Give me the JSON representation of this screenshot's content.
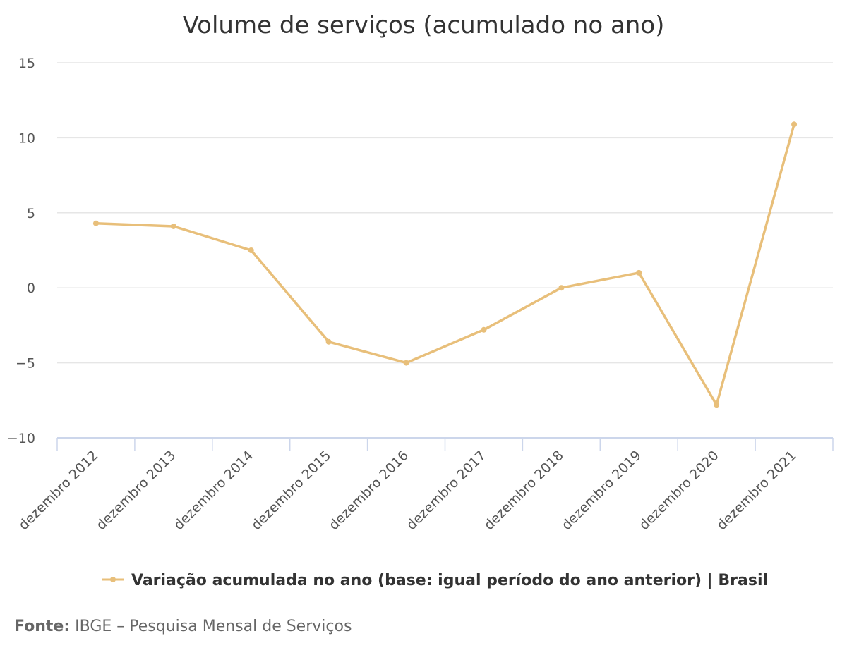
{
  "chart_data": {
    "type": "line",
    "title": "Volume de serviços (acumulado no ano)",
    "xlabel": "",
    "ylabel": "",
    "categories": [
      "dezembro 2012",
      "dezembro 2013",
      "dezembro 2014",
      "dezembro 2015",
      "dezembro 2016",
      "dezembro 2017",
      "dezembro 2018",
      "dezembro 2019",
      "dezembro 2020",
      "dezembro 2021"
    ],
    "series": [
      {
        "name": "Variação acumulada no ano (base: igual período do ano anterior) | Brasil",
        "values": [
          4.3,
          4.1,
          2.5,
          -3.6,
          -5.0,
          -2.8,
          0.0,
          1.0,
          -7.8,
          10.9
        ],
        "color": "#e8bf7a"
      }
    ],
    "ylim": [
      -10,
      15
    ],
    "yticks": [
      15,
      10,
      5,
      0,
      -5,
      -10
    ],
    "ytick_labels": [
      "15",
      "10",
      "5",
      "0",
      "−5",
      "−10"
    ],
    "grid": true,
    "legend_position": "bottom"
  },
  "source": {
    "label": "Fonte:",
    "text": " IBGE – Pesquisa Mensal de Serviços"
  }
}
